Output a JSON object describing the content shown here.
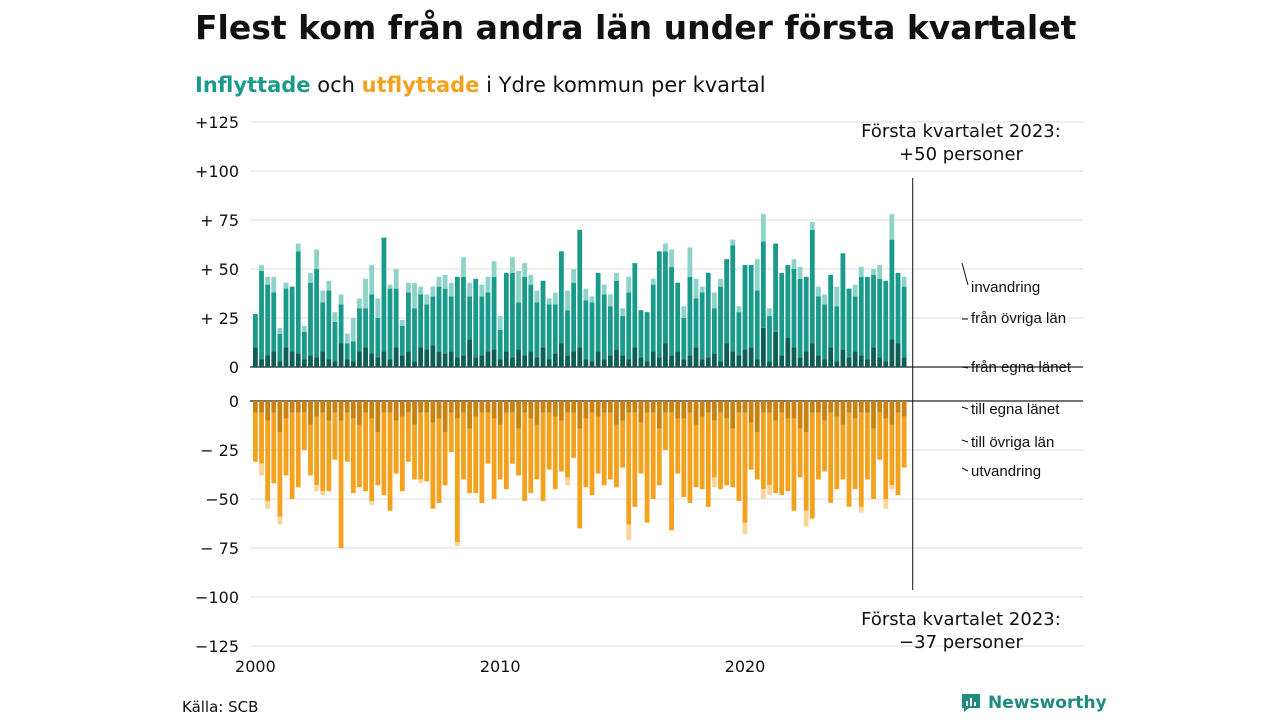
{
  "title": "Flest kom från andra län under första kvartalet",
  "subtitle": {
    "inflow_word": "Inflyttade",
    "and_word": "och",
    "outflow_word": "utflyttade",
    "rest": "i Ydre kommun per kvartal"
  },
  "source": "Källa: SCB",
  "brand": {
    "name": "Newsworthy",
    "icon": "newsworthy-logo-icon"
  },
  "colors": {
    "in_egna": "#0f5e55",
    "in_ovriga": "#1a9a8a",
    "in_invandring": "#8dd3c9",
    "out_egna": "#c98310",
    "out_ovriga": "#f4a11d",
    "out_utvandring": "#fad59a",
    "grid": "#dddddd"
  },
  "annotations": {
    "top_line1": "Första kvartalet 2023:",
    "top_line2": "+50 personer",
    "bottom_line1": "Första kvartalet 2023:",
    "bottom_line2": "−37 personer"
  },
  "chart_data": {
    "type": "bar",
    "stacked": true,
    "x_start_year": 2000,
    "x_ticks": [
      "2000",
      "2010",
      "2020"
    ],
    "y_ticks": [
      "+125",
      "+100",
      "+ 75",
      "+ 50",
      "+ 25",
      "0",
      "0",
      "− 25",
      "−50",
      "− 75",
      "−100",
      "−125"
    ],
    "ylim_in": [
      0,
      125
    ],
    "ylim_out": [
      -125,
      0
    ],
    "legend_in": [
      "invandring",
      "från övriga län",
      "från egna länet"
    ],
    "legend_out": [
      "till egna länet",
      "till övriga län",
      "utvandring"
    ],
    "inflow": {
      "egna": [
        10,
        4,
        6,
        8,
        3,
        10,
        8,
        7,
        4,
        6,
        5,
        8,
        4,
        3,
        12,
        4,
        3,
        8,
        10,
        7,
        5,
        8,
        4,
        10,
        6,
        8,
        3,
        10,
        9,
        11,
        8,
        7,
        8,
        5,
        6,
        14,
        5,
        6,
        8,
        9,
        4,
        8,
        5,
        9,
        6,
        8,
        5,
        10,
        4,
        7,
        12,
        6,
        8,
        10,
        4,
        3,
        8,
        4,
        6,
        9,
        6,
        4,
        10,
        5,
        3,
        8,
        5,
        12,
        6,
        8,
        4,
        6,
        10,
        4,
        5,
        7,
        3,
        12,
        8,
        6,
        9,
        10,
        4,
        20,
        3,
        18,
        6,
        15,
        10,
        5,
        8,
        12,
        6,
        4,
        10,
        3,
        9,
        5,
        8,
        6,
        4,
        10,
        5,
        3,
        14,
        12,
        5
      ],
      "ovriga": [
        17,
        45,
        36,
        30,
        14,
        30,
        33,
        52,
        14,
        37,
        45,
        25,
        35,
        20,
        20,
        8,
        10,
        22,
        20,
        30,
        20,
        58,
        36,
        30,
        15,
        30,
        27,
        27,
        23,
        25,
        33,
        33,
        28,
        41,
        40,
        22,
        40,
        30,
        30,
        37,
        15,
        40,
        43,
        24,
        40,
        34,
        28,
        34,
        28,
        25,
        47,
        23,
        35,
        60,
        30,
        30,
        40,
        33,
        25,
        35,
        20,
        34,
        43,
        24,
        25,
        34,
        54,
        47,
        45,
        35,
        21,
        40,
        25,
        34,
        43,
        23,
        38,
        43,
        54,
        22,
        43,
        42,
        35,
        44,
        23,
        45,
        42,
        37,
        40,
        40,
        38,
        58,
        30,
        28,
        37,
        28,
        49,
        35,
        28,
        40,
        42,
        37,
        40,
        41,
        51,
        36,
        36
      ],
      "invandring": [
        0,
        3,
        4,
        8,
        3,
        3,
        0,
        4,
        3,
        5,
        10,
        6,
        5,
        5,
        5,
        5,
        12,
        5,
        15,
        15,
        10,
        0,
        2,
        10,
        3,
        5,
        13,
        4,
        5,
        5,
        5,
        7,
        7,
        0,
        10,
        7,
        0,
        6,
        8,
        8,
        7,
        0,
        8,
        16,
        7,
        5,
        6,
        0,
        3,
        6,
        0,
        10,
        7,
        0,
        6,
        3,
        0,
        5,
        6,
        4,
        4,
        8,
        0,
        0,
        0,
        3,
        0,
        4,
        9,
        0,
        6,
        15,
        10,
        3,
        0,
        8,
        4,
        0,
        3,
        3,
        0,
        0,
        16,
        14,
        4,
        0,
        0,
        0,
        5,
        6,
        0,
        4,
        5,
        5,
        0,
        10,
        0,
        0,
        6,
        5,
        0,
        3,
        7,
        0,
        13,
        0,
        5
      ]
    },
    "outflow": {
      "egna": [
        -6,
        -6,
        -10,
        -6,
        -16,
        -9,
        -6,
        -6,
        -6,
        -12,
        -8,
        -6,
        -10,
        -6,
        -10,
        -6,
        -9,
        -12,
        -6,
        -9,
        -16,
        -6,
        -6,
        -10,
        -8,
        -6,
        -12,
        -6,
        -6,
        -11,
        -9,
        -16,
        -6,
        -9,
        -6,
        -14,
        -8,
        -6,
        -6,
        -9,
        -12,
        -6,
        -6,
        -14,
        -6,
        -9,
        -12,
        -6,
        -6,
        -8,
        -10,
        -6,
        -6,
        -14,
        -9,
        -6,
        -8,
        -6,
        -6,
        -12,
        -10,
        -6,
        -6,
        -11,
        -6,
        -6,
        -14,
        -6,
        -6,
        -9,
        -9,
        -6,
        -12,
        -8,
        -6,
        -10,
        -6,
        -9,
        -14,
        -6,
        -6,
        -11,
        -16,
        -6,
        -6,
        -10,
        -6,
        -9,
        -9,
        -14,
        -16,
        -6,
        -6,
        -10,
        -6,
        -8,
        -12,
        -6,
        -9,
        -6,
        -6,
        -14,
        -6,
        -9,
        -12,
        -6,
        -8
      ],
      "ovriga": [
        -25,
        -26,
        -41,
        -36,
        -43,
        -29,
        -44,
        -38,
        -19,
        -26,
        -35,
        -40,
        -36,
        -24,
        -65,
        -25,
        -38,
        -32,
        -40,
        -42,
        -27,
        -42,
        -50,
        -27,
        -38,
        -25,
        -28,
        -34,
        -35,
        -44,
        -43,
        -27,
        -20,
        -63,
        -34,
        -33,
        -39,
        -46,
        -26,
        -41,
        -28,
        -39,
        -26,
        -24,
        -45,
        -38,
        -28,
        -45,
        -29,
        -37,
        -26,
        -33,
        -23,
        -51,
        -35,
        -42,
        -29,
        -37,
        -34,
        -32,
        -24,
        -57,
        -48,
        -26,
        -56,
        -44,
        -29,
        -19,
        -60,
        -28,
        -40,
        -46,
        -32,
        -37,
        -48,
        -29,
        -39,
        -34,
        -30,
        -45,
        -56,
        -24,
        -24,
        -39,
        -37,
        -37,
        -42,
        -37,
        -47,
        -25,
        -40,
        -54,
        -34,
        -26,
        -46,
        -37,
        -28,
        -48,
        -36,
        -48,
        -34,
        -36,
        -24,
        -41,
        -31,
        -42,
        -26
      ],
      "utvandring": [
        0,
        -6,
        -4,
        0,
        -4,
        0,
        0,
        0,
        0,
        0,
        -3,
        -2,
        0,
        0,
        0,
        0,
        0,
        0,
        0,
        -2,
        0,
        0,
        0,
        0,
        0,
        0,
        0,
        -2,
        0,
        0,
        0,
        0,
        0,
        -2,
        0,
        0,
        0,
        0,
        0,
        0,
        0,
        0,
        0,
        0,
        0,
        0,
        0,
        0,
        0,
        0,
        0,
        -4,
        0,
        0,
        0,
        0,
        0,
        0,
        0,
        0,
        0,
        -8,
        0,
        0,
        0,
        0,
        0,
        0,
        0,
        0,
        0,
        0,
        0,
        0,
        0,
        -5,
        0,
        0,
        0,
        0,
        -6,
        0,
        0,
        -5,
        -5,
        0,
        0,
        0,
        0,
        0,
        -8,
        0,
        0,
        0,
        0,
        0,
        0,
        0,
        0,
        -3,
        0,
        0,
        0,
        -5,
        -2,
        0,
        0
      ]
    }
  }
}
